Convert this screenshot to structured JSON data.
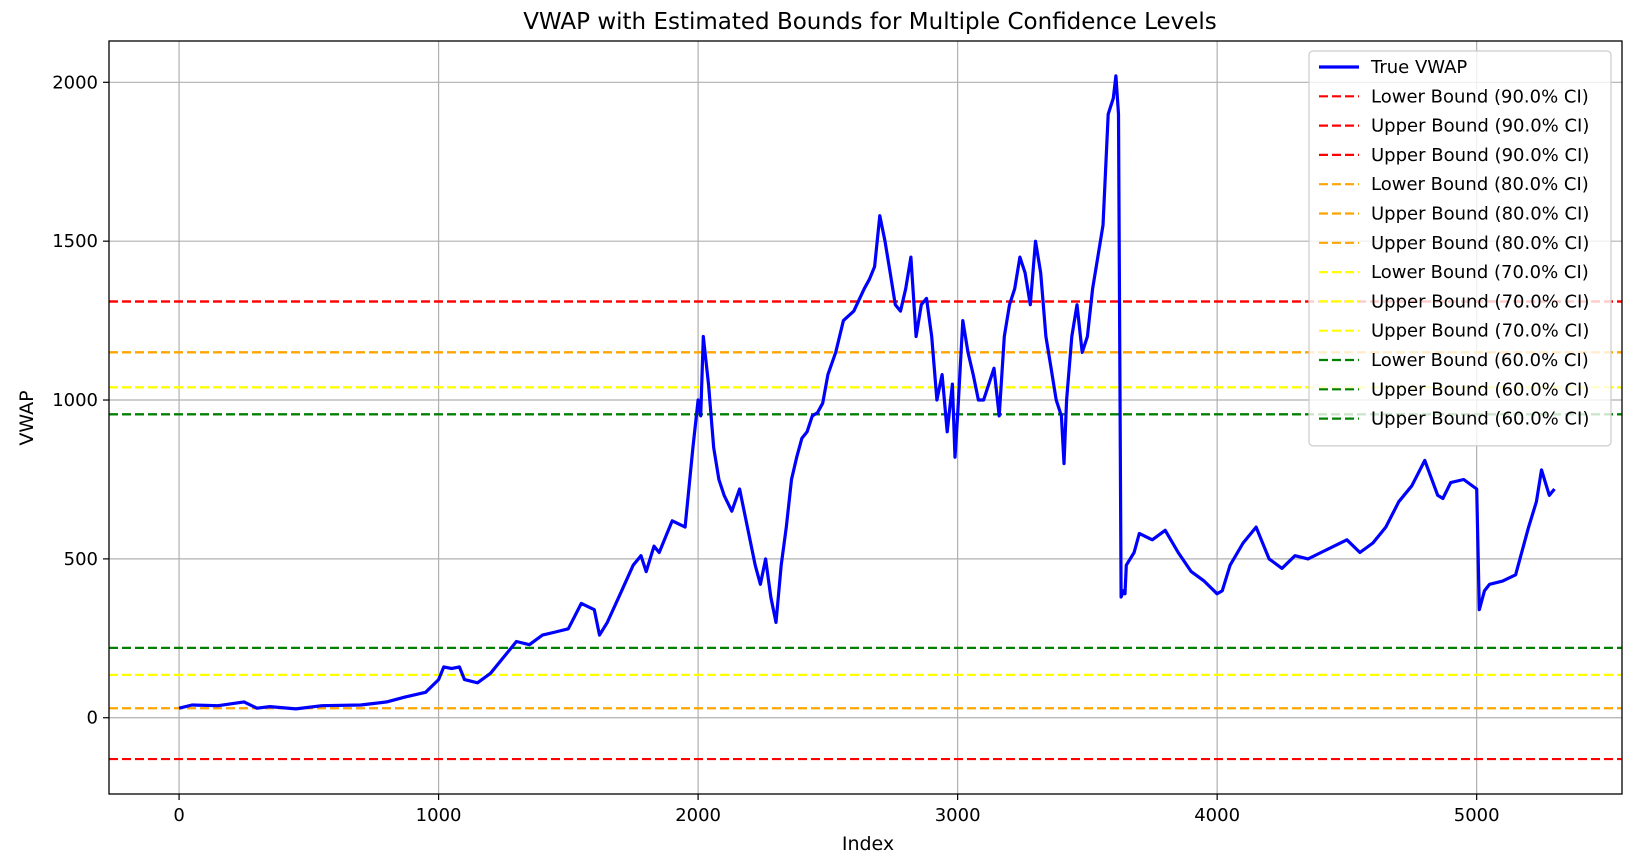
{
  "chart_data": {
    "type": "line",
    "title": "VWAP with Estimated Bounds for Multiple Confidence Levels",
    "xlabel": "Index",
    "ylabel": "VWAP",
    "xlim": [
      -270,
      5560
    ],
    "ylim": [
      -240,
      2130
    ],
    "xticks": [
      0,
      1000,
      2000,
      3000,
      4000,
      5000
    ],
    "yticks": [
      0,
      500,
      1000,
      1500,
      2000
    ],
    "grid": true,
    "legend_position": "top-right",
    "colors": {
      "vwap": "#0000ff",
      "ci90": "#ff0000",
      "ci80": "#ffa500",
      "ci70": "#ffff00",
      "ci60": "#008000"
    },
    "series": [
      {
        "name": "True VWAP",
        "color": "#0000ff",
        "style": "solid",
        "x": [
          0,
          50,
          150,
          250,
          300,
          350,
          450,
          550,
          700,
          800,
          870,
          950,
          1000,
          1020,
          1050,
          1080,
          1100,
          1150,
          1200,
          1250,
          1300,
          1350,
          1400,
          1450,
          1500,
          1550,
          1600,
          1620,
          1650,
          1700,
          1750,
          1780,
          1800,
          1830,
          1850,
          1900,
          1950,
          1980,
          2000,
          2010,
          2020,
          2040,
          2060,
          2080,
          2100,
          2130,
          2160,
          2190,
          2220,
          2240,
          2260,
          2280,
          2300,
          2320,
          2340,
          2360,
          2380,
          2400,
          2420,
          2440,
          2460,
          2480,
          2500,
          2530,
          2560,
          2600,
          2640,
          2660,
          2680,
          2700,
          2720,
          2740,
          2760,
          2780,
          2800,
          2820,
          2840,
          2860,
          2880,
          2900,
          2920,
          2940,
          2960,
          2980,
          2990,
          3000,
          3020,
          3040,
          3060,
          3080,
          3100,
          3120,
          3140,
          3160,
          3180,
          3200,
          3220,
          3240,
          3260,
          3280,
          3300,
          3320,
          3340,
          3360,
          3380,
          3400,
          3410,
          3420,
          3440,
          3460,
          3480,
          3500,
          3520,
          3540,
          3560,
          3580,
          3600,
          3610,
          3620,
          3630,
          3640,
          3645,
          3650,
          3680,
          3700,
          3750,
          3800,
          3850,
          3900,
          3950,
          4000,
          4020,
          4050,
          4100,
          4150,
          4200,
          4250,
          4300,
          4350,
          4400,
          4450,
          4500,
          4550,
          4600,
          4650,
          4700,
          4750,
          4800,
          4850,
          4870,
          4900,
          4950,
          5000,
          5010,
          5030,
          5050,
          5100,
          5150,
          5200,
          5230,
          5250,
          5280,
          5300
        ],
        "values": [
          30,
          40,
          38,
          50,
          30,
          35,
          28,
          38,
          40,
          50,
          65,
          80,
          120,
          160,
          155,
          160,
          120,
          110,
          140,
          190,
          240,
          230,
          260,
          270,
          280,
          360,
          340,
          260,
          300,
          390,
          480,
          510,
          460,
          540,
          520,
          620,
          600,
          850,
          1000,
          950,
          1200,
          1050,
          850,
          750,
          700,
          650,
          720,
          600,
          480,
          420,
          500,
          380,
          300,
          480,
          600,
          750,
          820,
          880,
          900,
          950,
          960,
          990,
          1080,
          1150,
          1250,
          1280,
          1350,
          1380,
          1420,
          1580,
          1500,
          1400,
          1300,
          1280,
          1350,
          1450,
          1200,
          1300,
          1320,
          1200,
          1000,
          1080,
          900,
          1050,
          820,
          950,
          1250,
          1150,
          1080,
          1000,
          1000,
          1050,
          1100,
          950,
          1200,
          1300,
          1350,
          1450,
          1400,
          1300,
          1500,
          1400,
          1200,
          1100,
          1000,
          950,
          800,
          1000,
          1200,
          1300,
          1150,
          1200,
          1350,
          1450,
          1550,
          1900,
          1950,
          2020,
          1900,
          380,
          400,
          390,
          480,
          520,
          580,
          560,
          590,
          520,
          460,
          430,
          390,
          400,
          480,
          550,
          600,
          500,
          470,
          510,
          500,
          520,
          540,
          560,
          520,
          550,
          600,
          680,
          730,
          810,
          700,
          690,
          740,
          750,
          720,
          340,
          400,
          420,
          430,
          450,
          600,
          680,
          780,
          700,
          720
        ]
      },
      {
        "name": "Lower Bound (90.0% CI)",
        "color": "#ff0000",
        "style": "dashed",
        "value": -130
      },
      {
        "name": "Upper Bound (90.0% CI)",
        "color": "#ff0000",
        "style": "dashed",
        "value": 1310
      },
      {
        "name": "Upper Bound (90.0% CI)",
        "color": "#ff0000",
        "style": "dashed",
        "value": 1310
      },
      {
        "name": "Lower Bound (80.0% CI)",
        "color": "#ffa500",
        "style": "dashed",
        "value": 30
      },
      {
        "name": "Upper Bound (80.0% CI)",
        "color": "#ffa500",
        "style": "dashed",
        "value": 1150
      },
      {
        "name": "Upper Bound (80.0% CI)",
        "color": "#ffa500",
        "style": "dashed",
        "value": 1150
      },
      {
        "name": "Lower Bound (70.0% CI)",
        "color": "#ffff00",
        "style": "dashed",
        "value": 135
      },
      {
        "name": "Upper Bound (70.0% CI)",
        "color": "#ffff00",
        "style": "dashed",
        "value": 1040
      },
      {
        "name": "Upper Bound (70.0% CI)",
        "color": "#ffff00",
        "style": "dashed",
        "value": 1040
      },
      {
        "name": "Lower Bound (60.0% CI)",
        "color": "#008000",
        "style": "dashed",
        "value": 220
      },
      {
        "name": "Upper Bound (60.0% CI)",
        "color": "#008000",
        "style": "dashed",
        "value": 955
      },
      {
        "name": "Upper Bound (60.0% CI)",
        "color": "#008000",
        "style": "dashed",
        "value": 955
      }
    ]
  }
}
